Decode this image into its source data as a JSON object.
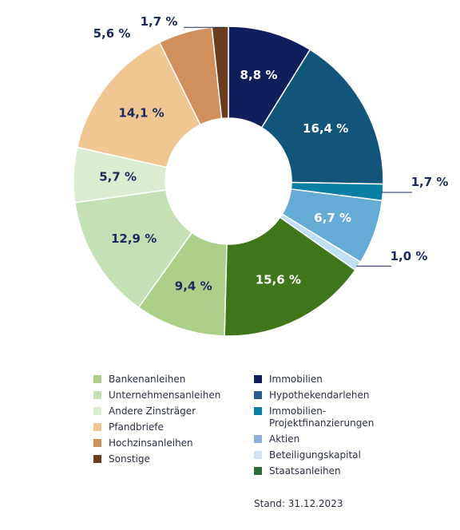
{
  "chart_data": {
    "type": "donut",
    "slices": [
      {
        "name": "Immobilien",
        "value": 8.8,
        "label": "8,8 %",
        "color": "#0f1f5c",
        "label_color": "#ffffff",
        "outside": false
      },
      {
        "name": "Hypothekendarlehen",
        "value": 16.4,
        "label": "16,4 %",
        "color": "#12557a",
        "label_color": "#ffffff",
        "outside": false
      },
      {
        "name": "Immobilien-\nProjektfinanzierungen",
        "value": 1.7,
        "label": "1,7 %",
        "color": "#0a7fa6",
        "label_color": "#1b2a5c",
        "outside": true
      },
      {
        "name": "Aktien",
        "value": 6.7,
        "label": "6,7 %",
        "color": "#64abd6",
        "label_color": "#ffffff",
        "outside": false
      },
      {
        "name": "Beteiligungskapital",
        "value": 1.0,
        "label": "1,0 %",
        "color": "#bfe0f3",
        "label_color": "#1b2a5c",
        "outside": true
      },
      {
        "name": "Staatsanleihen",
        "value": 15.6,
        "label": "15,6 %",
        "color": "#3f7619",
        "label_color": "#ffffff",
        "outside": false
      },
      {
        "name": "Bankenanleihen",
        "value": 9.4,
        "label": "9,4 %",
        "color": "#acd08a",
        "label_color": "#1b2a5c",
        "outside": false
      },
      {
        "name": "Unternehmensanleihen",
        "value": 12.9,
        "label": "12,9 %",
        "color": "#c5e0b5",
        "label_color": "#1b2a5c",
        "outside": false
      },
      {
        "name": "Andere Zinsträger",
        "value": 5.7,
        "label": "5,7 %",
        "color": "#dcecd0",
        "label_color": "#1b2a5c",
        "outside": false
      },
      {
        "name": "Pfandbriefe",
        "value": 14.1,
        "label": "14,1 %",
        "color": "#f0c693",
        "label_color": "#1b2a5c",
        "outside": false
      },
      {
        "name": "Hochzinsanleihen",
        "value": 5.6,
        "label": "5,6 %",
        "color": "#d28f5e",
        "label_color": "#1b2a5c",
        "outside": true
      },
      {
        "name": "Sonstige",
        "value": 1.7,
        "label": "1,7 %",
        "color": "#6b3d1e",
        "label_color": "#1b2a5c",
        "outside": true
      }
    ]
  },
  "legend": {
    "left": [
      {
        "label": "Bankenanleihen",
        "color": "#acd08a"
      },
      {
        "label": "Unternehmensanleihen",
        "color": "#c5e0b5"
      },
      {
        "label": "Andere Zinsträger",
        "color": "#dcecd0"
      },
      {
        "label": "Pfandbriefe",
        "color": "#f0c693"
      },
      {
        "label": "Hochzinsanleihen",
        "color": "#d28f5e"
      },
      {
        "label": "Sonstige",
        "color": "#6b3d1e"
      }
    ],
    "right": [
      {
        "label": "Immobilien",
        "color": "#0f1f5c"
      },
      {
        "label": "Hypothekendarlehen",
        "color": "#2d5a8e"
      },
      {
        "label": "Immobilien-\nProjektfinanzierungen",
        "color": "#0a7fa6"
      },
      {
        "label": "Aktien",
        "color": "#8fb1d6"
      },
      {
        "label": "Beteiligungskapital",
        "color": "#cfe3f4"
      },
      {
        "label": "Staatsanleihen",
        "color": "#2f6b35"
      }
    ]
  },
  "stand": "Stand: 31.12.2023"
}
